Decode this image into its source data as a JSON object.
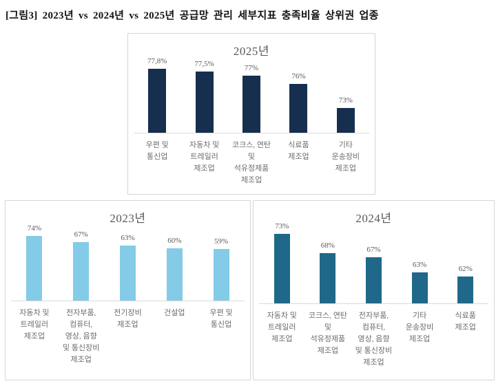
{
  "figure": {
    "title": "[그림3] 2023년 vs 2024년 vs 2025년  공급망 관리 세부지표 충족비율 상위권 업종"
  },
  "chart_data": [
    {
      "type": "bar",
      "title": "2025년",
      "categories": [
        [
          "우편 및",
          "통신업"
        ],
        [
          "자동차 및",
          "트레일러",
          "제조업"
        ],
        [
          "코크스, 연탄",
          "및",
          "석유정제품",
          "제조업"
        ],
        [
          "식료품",
          "제조업"
        ],
        [
          "기타",
          "운송장비",
          "제조업"
        ]
      ],
      "values": [
        77.8,
        77.5,
        77,
        76,
        73
      ],
      "data_labels": [
        "77,8%",
        "77,5%",
        "77%",
        "76%",
        "73%"
      ],
      "bar_color": "#162f4e",
      "xlabel": "",
      "ylabel": "",
      "unit": "%",
      "ylim": [
        70,
        79
      ],
      "grid": false,
      "legend": "none"
    },
    {
      "type": "bar",
      "title": "2023년",
      "categories": [
        [
          "자동차 및",
          "트레일러",
          "제조업"
        ],
        [
          "전자부품,",
          "컴퓨터,",
          "영상, 음향",
          "및 통신장비",
          "제조업"
        ],
        [
          "전기장비",
          "제조업"
        ],
        [
          "건설업"
        ],
        [
          "우편 및",
          "통신업"
        ]
      ],
      "values": [
        74,
        67,
        63,
        60,
        59
      ],
      "data_labels": [
        "74%",
        "67%",
        "63%",
        "60%",
        "59%"
      ],
      "bar_color": "#84cbe8",
      "xlabel": "",
      "ylabel": "",
      "unit": "%",
      "ylim": [
        0,
        85
      ],
      "grid": false,
      "legend": "none"
    },
    {
      "type": "bar",
      "title": "2024년",
      "categories": [
        [
          "자동차 및",
          "트레일러",
          "제조업"
        ],
        [
          "코크스, 연탄",
          "및",
          "석유정제품",
          "제조업"
        ],
        [
          "전자부품,",
          "컴퓨터,",
          "영상, 음향",
          "및 통신장비",
          "제조업"
        ],
        [
          "기타",
          "운송장비",
          "제조업"
        ],
        [
          "식료품",
          "제조업"
        ]
      ],
      "values": [
        73,
        68,
        67,
        63,
        62
      ],
      "data_labels": [
        "73%",
        "68%",
        "67%",
        "63%",
        "62%"
      ],
      "bar_color": "#20688a",
      "xlabel": "",
      "ylabel": "",
      "unit": "%",
      "ylim": [
        55,
        75
      ],
      "grid": false,
      "legend": "none"
    }
  ]
}
